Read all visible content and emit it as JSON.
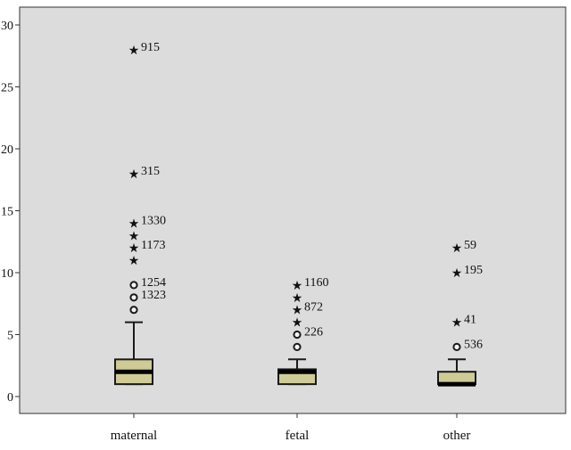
{
  "chart_data": {
    "type": "boxplot",
    "title": "",
    "xlabel": "",
    "ylabel": "",
    "ylim": [
      -1,
      31
    ],
    "y_ticks": [
      0,
      5,
      10,
      15,
      20,
      25,
      30
    ],
    "grid": false,
    "categories": [
      "maternal",
      "fetal",
      "other"
    ],
    "boxes": [
      {
        "category": "maternal",
        "whisker_low": 1,
        "q1": 1,
        "median": 2,
        "q3": 3,
        "whisker_high": 6,
        "outliers": [
          {
            "value": 7,
            "marker": "circle",
            "label": ""
          },
          {
            "value": 8,
            "marker": "circle",
            "label": "1323"
          },
          {
            "value": 9,
            "marker": "circle",
            "label": "1254"
          },
          {
            "value": 11,
            "marker": "star",
            "label": ""
          },
          {
            "value": 12,
            "marker": "star",
            "label": "1173"
          },
          {
            "value": 13,
            "marker": "star",
            "label": ""
          },
          {
            "value": 14,
            "marker": "star",
            "label": "1330"
          },
          {
            "value": 18,
            "marker": "star",
            "label": "315"
          },
          {
            "value": 28,
            "marker": "star",
            "label": "915"
          }
        ]
      },
      {
        "category": "fetal",
        "whisker_low": 1,
        "q1": 1,
        "median": 2,
        "q3": 2.2,
        "whisker_high": 3,
        "outliers": [
          {
            "value": 4,
            "marker": "circle",
            "label": ""
          },
          {
            "value": 5,
            "marker": "circle",
            "label": "226"
          },
          {
            "value": 6,
            "marker": "star",
            "label": ""
          },
          {
            "value": 7,
            "marker": "star",
            "label": "872"
          },
          {
            "value": 8,
            "marker": "star",
            "label": ""
          },
          {
            "value": 9,
            "marker": "star",
            "label": "1160"
          }
        ]
      },
      {
        "category": "other",
        "whisker_low": 1,
        "q1": 1,
        "median": 1,
        "q3": 2,
        "whisker_high": 3,
        "outliers": [
          {
            "value": 4,
            "marker": "circle",
            "label": "536"
          },
          {
            "value": 6,
            "marker": "star",
            "label": "41"
          },
          {
            "value": 10,
            "marker": "star",
            "label": "195"
          },
          {
            "value": 12,
            "marker": "star",
            "label": "59"
          }
        ]
      }
    ],
    "colors": {
      "plot_background": "#dcdcdc",
      "box_fill": "#cfcb96",
      "box_stroke": "#1a1a1a",
      "median": "#000000",
      "marker": "#1a1a1a"
    }
  }
}
